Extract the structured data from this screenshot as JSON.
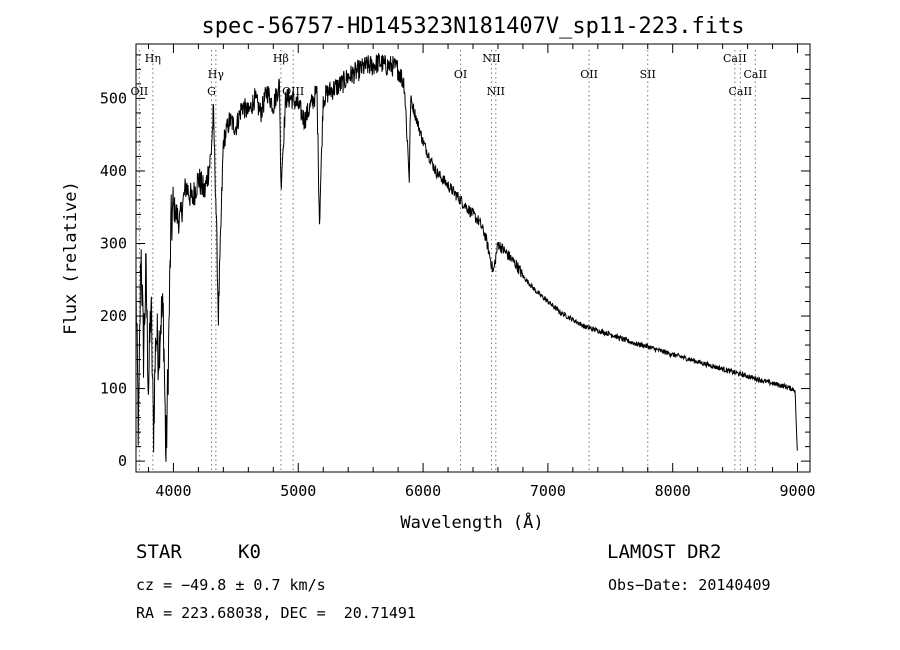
{
  "chart_data": {
    "type": "line",
    "title": "spec-56757-HD145323N181407V_sp11-223.fits",
    "xlabel": "Wavelength (Å)",
    "ylabel": "Flux (relative)",
    "xlim": [
      3700,
      9100
    ],
    "ylim": [
      -15,
      575
    ],
    "x_ticks": [
      4000,
      5000,
      6000,
      7000,
      8000,
      9000
    ],
    "y_ticks": [
      0,
      100,
      200,
      300,
      400,
      500
    ],
    "grid": false,
    "series": [
      {
        "x": [
          3700,
          3720,
          3740,
          3760,
          3780,
          3800,
          3820,
          3840,
          3860,
          3880,
          3900,
          3920,
          3940,
          3960,
          3980,
          4000,
          4050,
          4100,
          4150,
          4200,
          4250,
          4300,
          4320,
          4340,
          4360,
          4400,
          4450,
          4500,
          4550,
          4600,
          4650,
          4700,
          4750,
          4800,
          4850,
          4861,
          4900,
          4950,
          5000,
          5050,
          5100,
          5150,
          5170,
          5200,
          5250,
          5300,
          5350,
          5400,
          5450,
          5500,
          5550,
          5600,
          5650,
          5700,
          5750,
          5800,
          5850,
          5890,
          5900,
          5950,
          6000,
          6050,
          6100,
          6150,
          6200,
          6250,
          6300,
          6350,
          6400,
          6450,
          6500,
          6563,
          6600,
          6650,
          6700,
          6750,
          6800,
          6850,
          6900,
          7000,
          7100,
          7200,
          7300,
          7400,
          7500,
          7600,
          7700,
          7800,
          7900,
          8000,
          8100,
          8200,
          8300,
          8400,
          8500,
          8600,
          8700,
          8800,
          8900,
          8980,
          9000
        ],
        "y": [
          240,
          30,
          300,
          150,
          260,
          100,
          220,
          40,
          180,
          150,
          200,
          200,
          0,
          150,
          320,
          350,
          330,
          380,
          360,
          390,
          370,
          420,
          480,
          360,
          200,
          440,
          470,
          460,
          490,
          480,
          500,
          480,
          510,
          490,
          520,
          380,
          500,
          500,
          490,
          470,
          490,
          510,
          330,
          500,
          510,
          515,
          520,
          530,
          535,
          540,
          545,
          545,
          550,
          545,
          545,
          540,
          520,
          390,
          500,
          470,
          440,
          420,
          400,
          390,
          380,
          370,
          360,
          350,
          340,
          330,
          310,
          260,
          300,
          290,
          280,
          270,
          255,
          245,
          235,
          220,
          205,
          195,
          185,
          180,
          175,
          168,
          162,
          158,
          152,
          147,
          142,
          137,
          132,
          127,
          122,
          117,
          112,
          107,
          103,
          98,
          5
        ]
      }
    ],
    "lines": [
      {
        "name": "Hη",
        "x": 3835,
        "pos": "top"
      },
      {
        "name": "OII",
        "x": 3727,
        "pos": "mid"
      },
      {
        "name": "Hγ",
        "x": 4340,
        "pos": "top2"
      },
      {
        "name": "G",
        "x": 4305,
        "pos": "mid"
      },
      {
        "name": "Hβ",
        "x": 4861,
        "pos": "top"
      },
      {
        "name": "OIII",
        "x": 4959,
        "pos": "mid"
      },
      {
        "name": "OI",
        "x": 6300,
        "pos": "top2"
      },
      {
        "name": "NII",
        "x": 6548,
        "pos": "top"
      },
      {
        "name": "NII",
        "x": 6583,
        "pos": "mid"
      },
      {
        "name": "OII",
        "x": 7330,
        "pos": "top2"
      },
      {
        "name": "SII",
        "x": 7800,
        "pos": "top2"
      },
      {
        "name": "CaII",
        "x": 8498,
        "pos": "top"
      },
      {
        "name": "CaII",
        "x": 8542,
        "pos": "mid"
      },
      {
        "name": "CaII",
        "x": 8662,
        "pos": "top2"
      }
    ]
  },
  "info": {
    "object_class": "STAR",
    "subclass": "K0",
    "survey": "LAMOST DR2",
    "cz": "cz = −49.8 ± 0.7 km/s",
    "obs_date": "Obs−Date: 20140409",
    "coords": "RA = 223.68038, DEC =  20.71491"
  }
}
